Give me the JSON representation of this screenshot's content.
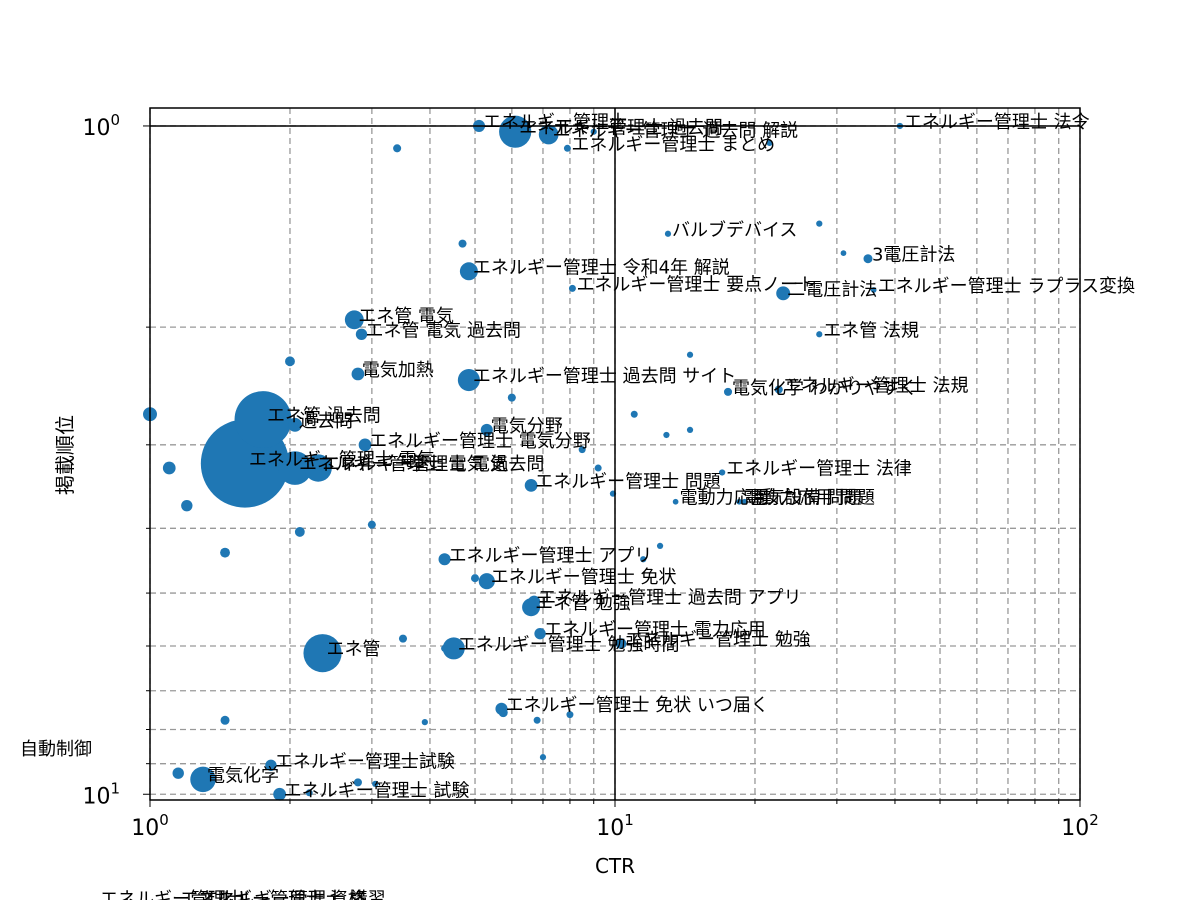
{
  "chart_data": {
    "type": "scatter",
    "title": "",
    "xlabel": "CTR",
    "ylabel": "掲載順位",
    "x_scale": "log",
    "y_scale": "log",
    "y_inverted": true,
    "xlim": [
      1,
      100
    ],
    "ylim": [
      10.2,
      0.94
    ],
    "x_tick_labels": [
      {
        "value": 1,
        "base": "10",
        "exp": "0"
      },
      {
        "value": 10,
        "base": "10",
        "exp": "1"
      },
      {
        "value": 100,
        "base": "10",
        "exp": "2"
      }
    ],
    "y_tick_labels": [
      {
        "value": 1,
        "base": "10",
        "exp": "0"
      },
      {
        "value": 10,
        "base": "10",
        "exp": "1"
      }
    ],
    "reference_lines": {
      "x": 10,
      "y": 1
    },
    "grid": true,
    "marker_color": "#1f77b4",
    "points": [
      {
        "x": 1.6,
        "y": 3.2,
        "size": 2400,
        "label": "エネルギー管理士 電気"
      },
      {
        "x": 1.75,
        "y": 2.75,
        "size": 1000,
        "label": "エネ管 過去問"
      },
      {
        "x": 2.05,
        "y": 3.25,
        "size": 350,
        "label": "エネルギー管理士 電気 過去問"
      },
      {
        "x": 2.3,
        "y": 3.25,
        "size": 230,
        "label": "エネルギー管理士 電気"
      },
      {
        "x": 2.05,
        "y": 2.8,
        "size": 60,
        "label": "過去問"
      },
      {
        "x": 2.35,
        "y": 6.15,
        "size": 450,
        "label": "エネ管"
      },
      {
        "x": 6.1,
        "y": 1.02,
        "size": 320,
        "label": "エネルギー管理士 過去問"
      },
      {
        "x": 7.2,
        "y": 1.03,
        "size": 120,
        "label": "エネルギー管理士 過去問 解説"
      },
      {
        "x": 5.1,
        "y": 1.0,
        "size": 45,
        "label": "エネルギー管理士"
      },
      {
        "x": 1.3,
        "y": 9.5,
        "size": 200,
        "label": "電気化学"
      },
      {
        "x": 1.82,
        "y": 9.05,
        "size": 40,
        "label": "エネルギー管理士試験"
      },
      {
        "x": 1.9,
        "y": 10.0,
        "size": 50,
        "label": "エネルギー管理士 試験"
      },
      {
        "x": 4.5,
        "y": 6.05,
        "size": 150,
        "label": "エネルギー管理士 勉強時間"
      },
      {
        "x": 4.85,
        "y": 2.4,
        "size": 150,
        "label": "エネルギー管理士 過去問 サイト"
      },
      {
        "x": 4.85,
        "y": 1.65,
        "size": 100,
        "label": "エネルギー管理士 令和4年 解説"
      },
      {
        "x": 2.75,
        "y": 1.95,
        "size": 110,
        "label": "エネ管 電気"
      },
      {
        "x": 2.85,
        "y": 2.05,
        "size": 40,
        "label": "エネ管 電気 過去問"
      },
      {
        "x": 2.8,
        "y": 2.35,
        "size": 50,
        "label": "電気加熱"
      },
      {
        "x": 2.9,
        "y": 3.0,
        "size": 50,
        "label": "エネルギー管理士 電気分野"
      },
      {
        "x": 5.3,
        "y": 2.85,
        "size": 45,
        "label": "電気分野"
      },
      {
        "x": 6.6,
        "y": 3.45,
        "size": 50,
        "label": "エネルギー管理士 問題"
      },
      {
        "x": 5.3,
        "y": 4.8,
        "size": 80,
        "label": "エネルギー管理士 免状"
      },
      {
        "x": 4.3,
        "y": 4.45,
        "size": 45,
        "label": "エネルギー管理士 アプリ"
      },
      {
        "x": 6.6,
        "y": 5.25,
        "size": 100,
        "label": "エネ管 勉強"
      },
      {
        "x": 6.7,
        "y": 5.15,
        "size": 45,
        "label": "エネルギー管理士 過去問 アプリ"
      },
      {
        "x": 6.9,
        "y": 5.75,
        "size": 40,
        "label": "エネルギー管理士 電力応用"
      },
      {
        "x": 10.3,
        "y": 5.95,
        "size": 35,
        "label": "エネルギー管理士 勉強"
      },
      {
        "x": 5.7,
        "y": 7.45,
        "size": 45,
        "label": "エネルギー管理士 免状 いつ届く"
      },
      {
        "x": 7.9,
        "y": 1.08,
        "size": 15,
        "label": "エネルギー管理士 まとめ"
      },
      {
        "x": 8.1,
        "y": 1.75,
        "size": 15,
        "label": "エネルギー管理士 要点ノート"
      },
      {
        "x": 13.0,
        "y": 1.45,
        "size": 12,
        "label": "バルブデバイス"
      },
      {
        "x": 41.0,
        "y": 1.0,
        "size": 12,
        "label": "エネルギー管理士 法令"
      },
      {
        "x": 35.0,
        "y": 1.58,
        "size": 25,
        "label": "3電圧計法"
      },
      {
        "x": 23.0,
        "y": 1.78,
        "size": 60,
        "label": "二電圧計法"
      },
      {
        "x": 36.0,
        "y": 1.76,
        "size": 10,
        "label": "エネルギー管理士 ラプラス変換"
      },
      {
        "x": 27.5,
        "y": 2.05,
        "size": 12,
        "label": "エネ管 法規"
      },
      {
        "x": 17.5,
        "y": 2.5,
        "size": 20,
        "label": "電気化学 わかりやすく"
      },
      {
        "x": 22.5,
        "y": 2.48,
        "size": 20,
        "label": "エネルギー管理士 法規"
      },
      {
        "x": 17.0,
        "y": 3.3,
        "size": 12,
        "label": "エネルギー管理士 法律"
      },
      {
        "x": 13.5,
        "y": 3.65,
        "size": 10,
        "label": "電動力応用"
      },
      {
        "x": 18.5,
        "y": 3.65,
        "size": 10,
        "label": "電動力応用 問題"
      },
      {
        "x": 19.0,
        "y": 3.65,
        "size": 10,
        "label": "電気設備 問題"
      },
      {
        "x": 1.0,
        "y": 2.7,
        "size": 60,
        "label": ""
      },
      {
        "x": 3.4,
        "y": 1.08,
        "size": 20,
        "label": ""
      },
      {
        "x": 4.7,
        "y": 1.5,
        "size": 20,
        "label": ""
      },
      {
        "x": 1.2,
        "y": 3.7,
        "size": 40,
        "label": ""
      },
      {
        "x": 1.45,
        "y": 4.35,
        "size": 30,
        "label": ""
      },
      {
        "x": 2.1,
        "y": 4.05,
        "size": 30,
        "label": ""
      },
      {
        "x": 3.0,
        "y": 3.95,
        "size": 20,
        "label": ""
      },
      {
        "x": 1.1,
        "y": 3.25,
        "size": 50,
        "label": ""
      },
      {
        "x": 2.0,
        "y": 2.25,
        "size": 30,
        "label": ""
      },
      {
        "x": 1.45,
        "y": 7.75,
        "size": 25,
        "label": ""
      },
      {
        "x": 1.15,
        "y": 9.3,
        "size": 40,
        "label": ""
      },
      {
        "x": 3.5,
        "y": 5.85,
        "size": 20,
        "label": ""
      },
      {
        "x": 4.3,
        "y": 6.05,
        "size": 15,
        "label": ""
      },
      {
        "x": 3.9,
        "y": 7.8,
        "size": 12,
        "label": ""
      },
      {
        "x": 5.0,
        "y": 4.75,
        "size": 20,
        "label": ""
      },
      {
        "x": 5.75,
        "y": 7.55,
        "size": 25,
        "label": ""
      },
      {
        "x": 6.8,
        "y": 7.75,
        "size": 15,
        "label": ""
      },
      {
        "x": 8.0,
        "y": 7.6,
        "size": 15,
        "label": ""
      },
      {
        "x": 7.0,
        "y": 8.8,
        "size": 12,
        "label": ""
      },
      {
        "x": 6.0,
        "y": 2.55,
        "size": 20,
        "label": ""
      },
      {
        "x": 8.5,
        "y": 3.05,
        "size": 15,
        "label": ""
      },
      {
        "x": 9.2,
        "y": 3.25,
        "size": 15,
        "label": ""
      },
      {
        "x": 9.9,
        "y": 3.55,
        "size": 12,
        "label": ""
      },
      {
        "x": 11.0,
        "y": 2.7,
        "size": 15,
        "label": ""
      },
      {
        "x": 12.9,
        "y": 2.9,
        "size": 12,
        "label": ""
      },
      {
        "x": 14.5,
        "y": 2.2,
        "size": 12,
        "label": ""
      },
      {
        "x": 14.5,
        "y": 2.85,
        "size": 12,
        "label": ""
      },
      {
        "x": 12.5,
        "y": 4.25,
        "size": 12,
        "label": ""
      },
      {
        "x": 11.5,
        "y": 4.45,
        "size": 12,
        "label": ""
      },
      {
        "x": 21.5,
        "y": 1.06,
        "size": 12,
        "label": ""
      },
      {
        "x": 27.5,
        "y": 1.4,
        "size": 12,
        "label": ""
      },
      {
        "x": 31.0,
        "y": 1.55,
        "size": 10,
        "label": ""
      },
      {
        "x": 2.8,
        "y": 9.6,
        "size": 20,
        "label": ""
      },
      {
        "x": 2.2,
        "y": 9.95,
        "size": 15,
        "label": ""
      },
      {
        "x": 3.05,
        "y": 9.65,
        "size": 12,
        "label": ""
      },
      {
        "x": 9.0,
        "y": 1.02,
        "size": 12,
        "label": ""
      }
    ],
    "outside_labels": [
      {
        "text": "自動制御",
        "placement": "left-of-axes"
      },
      {
        "text": "エネルギー管理士",
        "placement": "below-axes"
      },
      {
        "text": "エネルギー管理士 資格",
        "placement": "below-axes"
      },
      {
        "text": "エネルギー管理士 講習",
        "placement": "below-axes"
      }
    ]
  }
}
